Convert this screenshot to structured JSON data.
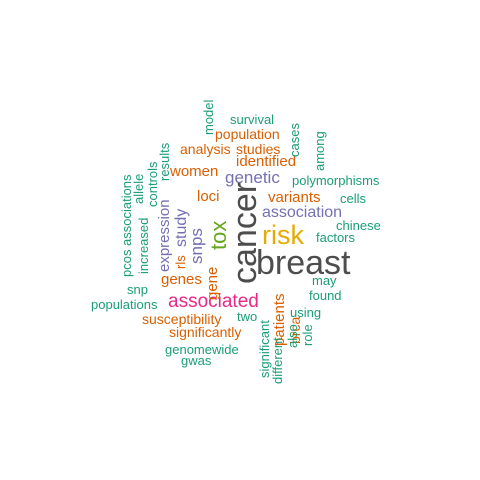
{
  "colors": {
    "dark": "#4d4d4d",
    "orange": "#d95f02",
    "teal": "#1b9e77",
    "purple": "#7570b3",
    "magenta": "#e7298a",
    "green": "#66a61e",
    "gold": "#e6ab02"
  },
  "words": [
    {
      "id": "breast",
      "text": "breast",
      "color": "dark"
    },
    {
      "id": "cancer",
      "text": "cancer",
      "color": "dark"
    },
    {
      "id": "risk",
      "text": "risk",
      "color": "gold"
    },
    {
      "id": "tox",
      "text": "tox",
      "color": "green"
    },
    {
      "id": "associated",
      "text": "associated",
      "color": "magenta"
    },
    {
      "id": "snps",
      "text": "snps",
      "color": "purple"
    },
    {
      "id": "genetic",
      "text": "genetic",
      "color": "purple"
    },
    {
      "id": "association",
      "text": "association",
      "color": "purple"
    },
    {
      "id": "study",
      "text": "study",
      "color": "purple"
    },
    {
      "id": "expression",
      "text": "expression",
      "color": "purple"
    },
    {
      "id": "identified",
      "text": "identified",
      "color": "orange"
    },
    {
      "id": "variants",
      "text": "variants",
      "color": "orange"
    },
    {
      "id": "women",
      "text": "women",
      "color": "orange"
    },
    {
      "id": "loci",
      "text": "loci",
      "color": "orange"
    },
    {
      "id": "genes",
      "text": "genes",
      "color": "orange"
    },
    {
      "id": "gene",
      "text": "gene",
      "color": "orange"
    },
    {
      "id": "patients",
      "text": "patients",
      "color": "orange"
    },
    {
      "id": "studies",
      "text": "studies",
      "color": "orange"
    },
    {
      "id": "analysis",
      "text": "analysis",
      "color": "orange"
    },
    {
      "id": "population",
      "text": "population",
      "color": "orange"
    },
    {
      "id": "susceptibility",
      "text": "susceptibility",
      "color": "orange"
    },
    {
      "id": "significantly",
      "text": "significantly",
      "color": "orange"
    },
    {
      "id": "rls",
      "text": "rls",
      "color": "orange"
    },
    {
      "id": "brca",
      "text": "brca",
      "color": "orange"
    },
    {
      "id": "polymorphisms",
      "text": "polymorphisms",
      "color": "teal"
    },
    {
      "id": "factors",
      "text": "factors",
      "color": "teal"
    },
    {
      "id": "chinese",
      "text": "chinese",
      "color": "teal"
    },
    {
      "id": "cells",
      "text": "cells",
      "color": "teal"
    },
    {
      "id": "may",
      "text": "may",
      "color": "teal"
    },
    {
      "id": "found",
      "text": "found",
      "color": "teal"
    },
    {
      "id": "using",
      "text": "using",
      "color": "teal"
    },
    {
      "id": "role",
      "text": "role",
      "color": "teal"
    },
    {
      "id": "also",
      "text": "also",
      "color": "teal"
    },
    {
      "id": "different",
      "text": "different",
      "color": "teal"
    },
    {
      "id": "significant",
      "text": "significant",
      "color": "teal"
    },
    {
      "id": "two",
      "text": "two",
      "color": "teal"
    },
    {
      "id": "genomewide",
      "text": "genomewide",
      "color": "teal"
    },
    {
      "id": "gwas",
      "text": "gwas",
      "color": "teal"
    },
    {
      "id": "populations",
      "text": "populations",
      "color": "teal"
    },
    {
      "id": "snp",
      "text": "snp",
      "color": "teal"
    },
    {
      "id": "pcos",
      "text": "pcos",
      "color": "teal"
    },
    {
      "id": "associations",
      "text": "associations",
      "color": "teal"
    },
    {
      "id": "increased",
      "text": "increased",
      "color": "teal"
    },
    {
      "id": "allele",
      "text": "allele",
      "color": "teal"
    },
    {
      "id": "controls",
      "text": "controls",
      "color": "teal"
    },
    {
      "id": "results",
      "text": "results",
      "color": "teal"
    },
    {
      "id": "model",
      "text": "model",
      "color": "teal"
    },
    {
      "id": "survival",
      "text": "survival",
      "color": "teal"
    },
    {
      "id": "cases",
      "text": "cases",
      "color": "teal"
    },
    {
      "id": "among",
      "text": "among",
      "color": "teal"
    }
  ]
}
